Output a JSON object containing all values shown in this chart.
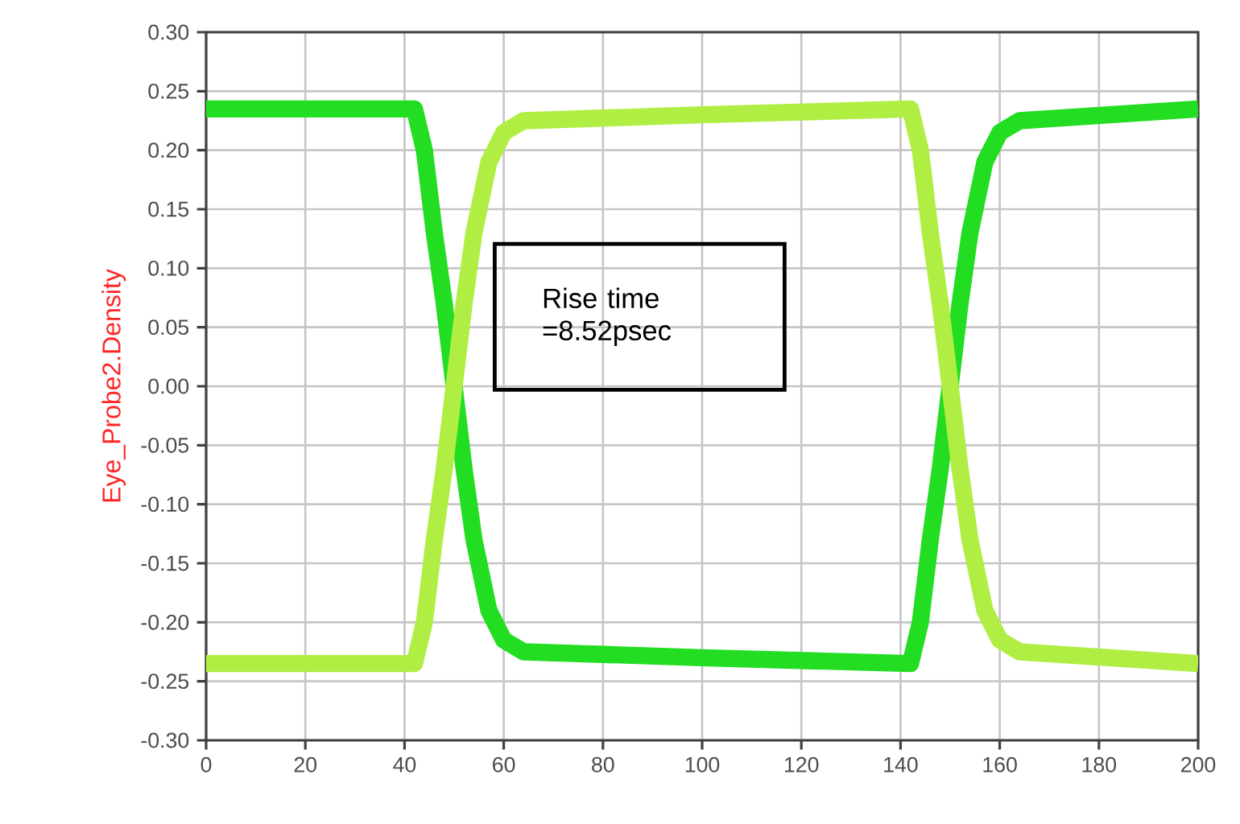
{
  "chart_data": {
    "type": "line",
    "ylabel": "Eye_Probe2.Density",
    "annotations": [
      "Rise time =8.52psec"
    ],
    "xlim": [
      0,
      200
    ],
    "xticks": [
      0,
      20,
      40,
      60,
      80,
      100,
      120,
      140,
      160,
      180,
      200
    ],
    "ylim": [
      -0.3,
      0.3
    ],
    "yticks": [
      {
        "value": -0.3,
        "label": "-0.30"
      },
      {
        "value": -0.25,
        "label": "-0.25"
      },
      {
        "value": -0.2,
        "label": "-0.20"
      },
      {
        "value": -0.15,
        "label": "-0.15"
      },
      {
        "value": -0.1,
        "label": "-0.10"
      },
      {
        "value": -0.05,
        "label": "-0.05"
      },
      {
        "value": 0,
        "label": "0.00"
      },
      {
        "value": 0.05,
        "label": "0.05"
      },
      {
        "value": 0.1,
        "label": "0.10"
      },
      {
        "value": 0.15,
        "label": "0.15"
      },
      {
        "value": 0.2,
        "label": "0.20"
      },
      {
        "value": 0.25,
        "label": "0.25"
      },
      {
        "value": 0.3,
        "label": "0.30"
      }
    ],
    "grid": true,
    "marker": "none",
    "line_style": "solid",
    "x": [
      0,
      42,
      44,
      46,
      48,
      50,
      52,
      54,
      57,
      60,
      64,
      100,
      142,
      144,
      146,
      148,
      150,
      152,
      154,
      157,
      160,
      164,
      200
    ],
    "series": [
      {
        "color": "#22dd22",
        "values": [
          0.235,
          0.235,
          0.2,
          0.13,
          0.07,
          0,
          -0.07,
          -0.13,
          -0.19,
          -0.215,
          -0.225,
          -0.23,
          -0.235,
          -0.2,
          -0.13,
          -0.07,
          0,
          0.07,
          0.13,
          0.19,
          0.215,
          0.225,
          0.235
        ]
      },
      {
        "color": "#b0ee44",
        "values": [
          -0.235,
          -0.235,
          -0.2,
          -0.13,
          -0.07,
          0,
          0.07,
          0.13,
          0.19,
          0.215,
          0.225,
          0.23,
          0.235,
          0.2,
          0.13,
          0.07,
          0,
          -0.07,
          -0.13,
          -0.19,
          -0.215,
          -0.225,
          -0.235
        ]
      }
    ]
  }
}
